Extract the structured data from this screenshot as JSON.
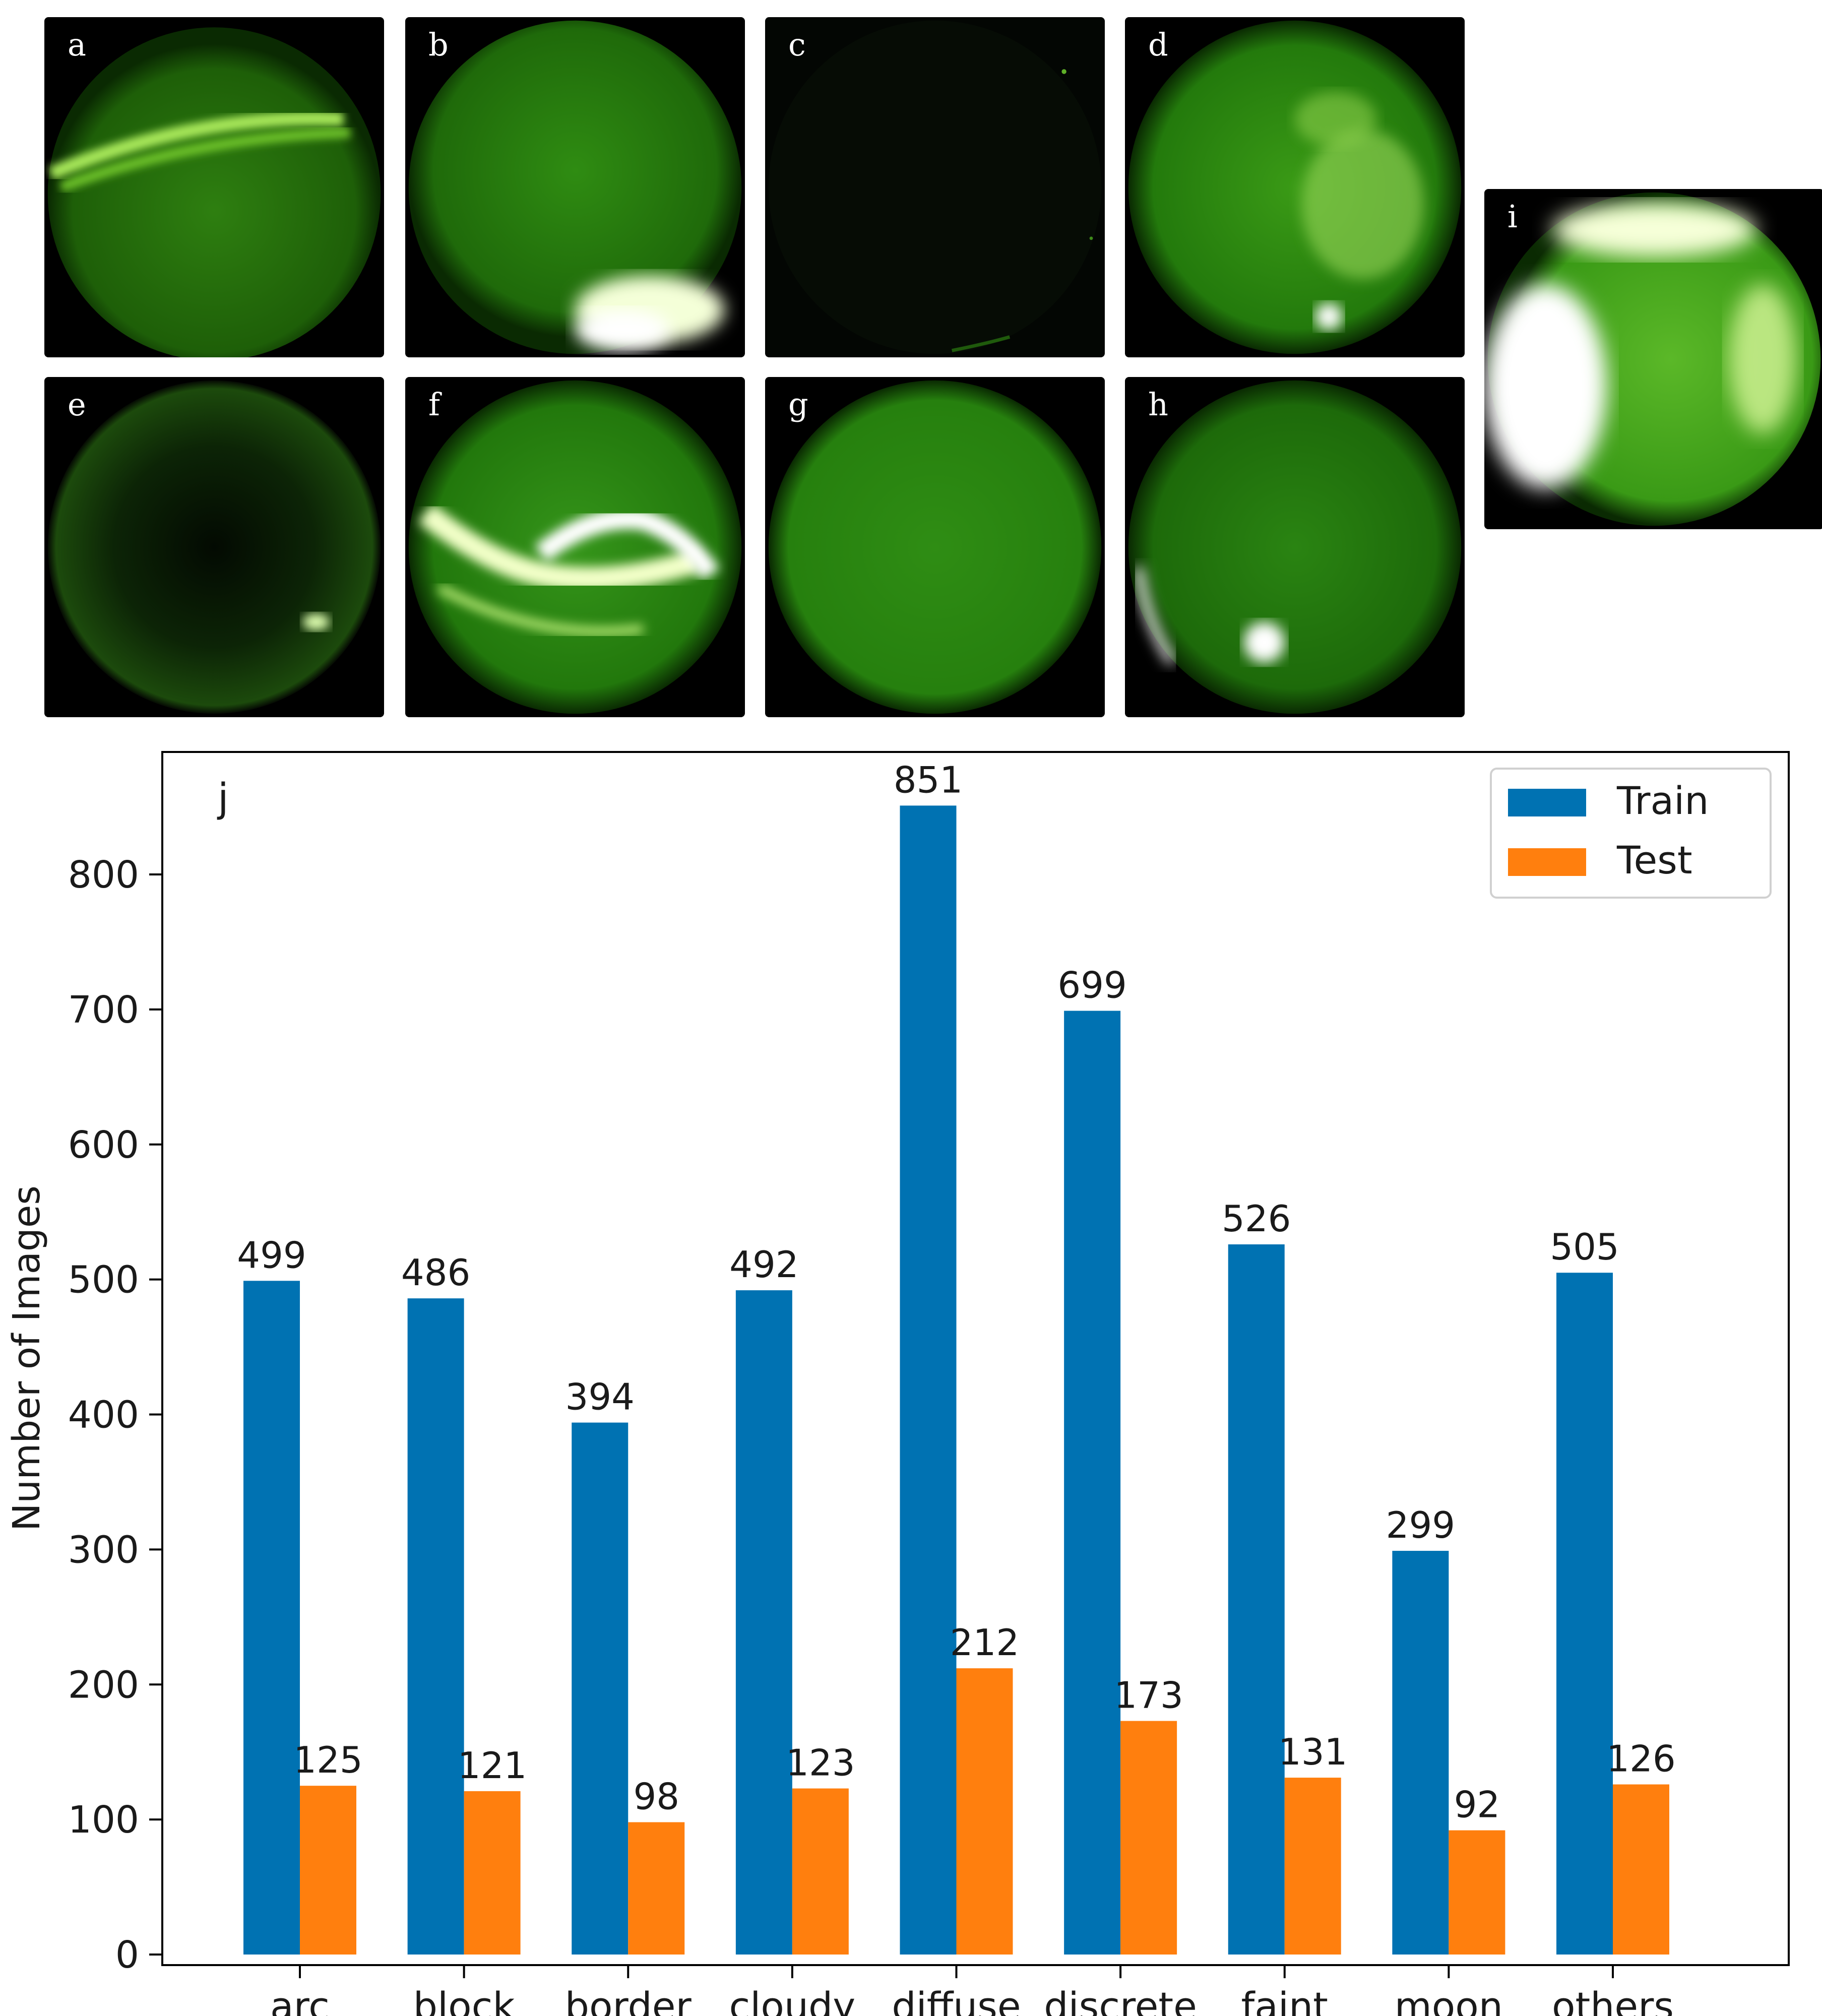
{
  "panels": [
    {
      "label": "a",
      "variant": "arc"
    },
    {
      "label": "b",
      "variant": "block"
    },
    {
      "label": "c",
      "variant": "border"
    },
    {
      "label": "d",
      "variant": "cloudy"
    },
    {
      "label": "e",
      "variant": "diffuse"
    },
    {
      "label": "f",
      "variant": "discrete"
    },
    {
      "label": "g",
      "variant": "faint"
    },
    {
      "label": "h",
      "variant": "moon"
    },
    {
      "label": "i",
      "variant": "others"
    }
  ],
  "chart_data": {
    "type": "bar",
    "panel_label": "j",
    "categories": [
      "arc",
      "block",
      "border",
      "cloudy",
      "diffuse",
      "discrete",
      "faint",
      "moon",
      "others"
    ],
    "series": [
      {
        "name": "Train",
        "color": "#0072b2",
        "values": [
          499,
          486,
          394,
          492,
          851,
          699,
          526,
          299,
          505
        ]
      },
      {
        "name": "Test",
        "color": "#ff7f0e",
        "values": [
          125,
          121,
          98,
          123,
          212,
          173,
          131,
          92,
          126
        ]
      }
    ],
    "ylabel": "Number of Images",
    "xlabel": "",
    "ylim": [
      0,
      890
    ],
    "yticks": [
      0,
      100,
      200,
      300,
      400,
      500,
      600,
      700,
      800
    ],
    "legend_position": "top-right",
    "grid": false
  }
}
